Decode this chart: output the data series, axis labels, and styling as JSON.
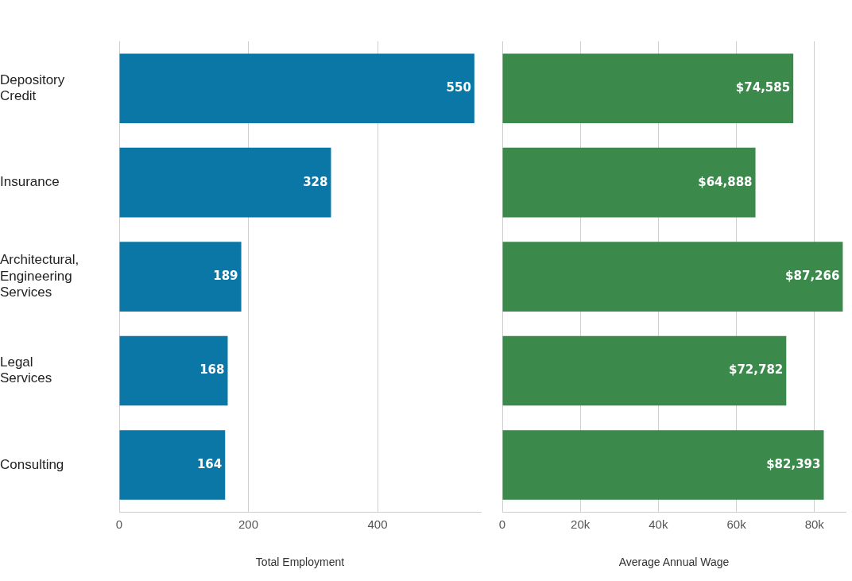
{
  "chart_data": [
    {
      "type": "bar",
      "orientation": "horizontal",
      "categories": [
        "Depository Credit",
        "Insurance",
        "Architectural, Engineering Services",
        "Legal Services",
        "Consulting"
      ],
      "values": [
        550,
        328,
        189,
        168,
        164
      ],
      "color": "#0b77a6",
      "xlabel": "Total Employment",
      "xlim": [
        0,
        560
      ],
      "xticks": [
        0,
        200,
        400
      ],
      "grid": "x",
      "data_labels": true
    },
    {
      "type": "bar",
      "orientation": "horizontal",
      "categories": [
        null,
        null,
        null,
        null,
        null
      ],
      "values": [
        74585,
        64888,
        87266,
        72782,
        82393
      ],
      "value_labels": [
        "$74,585",
        "$64,888",
        "$87,266",
        "$72,782",
        "$82,393"
      ],
      "color": "#3b8a4c",
      "xlabel": "Average Annual Wage",
      "xlim": [
        0,
        88000
      ],
      "xticks": [
        0,
        {
          "value": 20000,
          "label": "20k"
        },
        {
          "value": 40000,
          "label": "40k"
        },
        {
          "value": 60000,
          "label": "60k"
        },
        {
          "value": 80000,
          "label": "80k"
        }
      ],
      "grid": "x",
      "tick_labels": "x"
    }
  ]
}
